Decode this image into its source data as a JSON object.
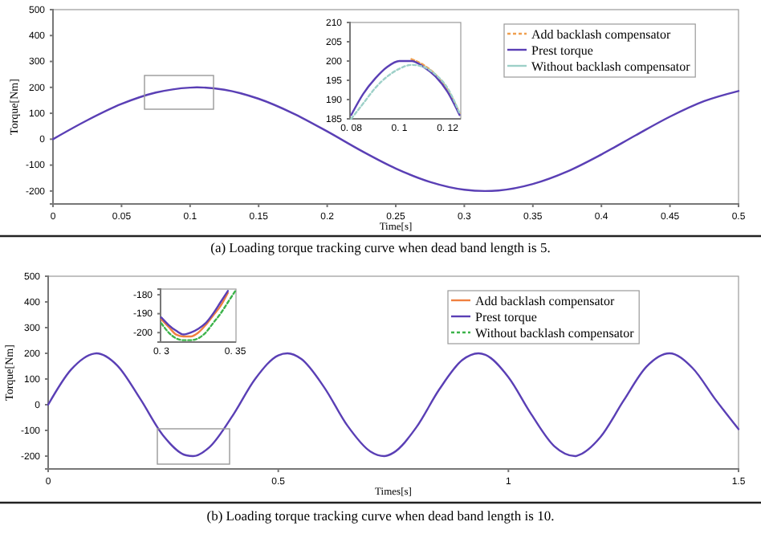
{
  "chart_data": [
    {
      "type": "line",
      "xlabel": "Time[s]",
      "ylabel": "Torque[Nm]",
      "annotations": [
        "(a) Loading torque tracking curve when dead band length is 5."
      ],
      "legend": "top right",
      "x": [
        0,
        0.025,
        0.05,
        0.075,
        0.1,
        0.105,
        0.125,
        0.15,
        0.175,
        0.2,
        0.225,
        0.25,
        0.275,
        0.3,
        0.315,
        0.325,
        0.35,
        0.375,
        0.4,
        0.425,
        0.45,
        0.475,
        0.5
      ],
      "xlim": [
        0,
        0.5
      ],
      "xticks": [
        0,
        0.05,
        0.1,
        0.15,
        0.2,
        0.25,
        0.3,
        0.35,
        0.4,
        0.45,
        0.5
      ],
      "ylim": [
        -250,
        500
      ],
      "yticks": [
        -200,
        -100,
        0,
        100,
        200,
        300,
        400,
        500
      ],
      "series": [
        {
          "name": "Add backlash compensator",
          "color": "#f0a050",
          "line_style": "dashed",
          "values": [
            null,
            null,
            null,
            null,
            null,
            null,
            null,
            null,
            null,
            null,
            null,
            null,
            null,
            null,
            null,
            null,
            null,
            null,
            null,
            null,
            null,
            null,
            null
          ]
        },
        {
          "name": "Prest torque",
          "color": "#5a3fb5",
          "line_style": "solid",
          "values": [
            0,
            73,
            136,
            180,
            199,
            200,
            191,
            156,
            100,
            30,
            -45,
            -113,
            -165,
            -195,
            -200,
            -198,
            -173,
            -125,
            -59,
            15,
            87,
            147,
            186
          ]
        },
        {
          "name": "Without backlash compensator",
          "color": "#9dd0c8",
          "line_style": "solid",
          "values": [
            null,
            null,
            null,
            null,
            null,
            null,
            null,
            null,
            null,
            null,
            null,
            null,
            null,
            null,
            null,
            null,
            null,
            null,
            null,
            null,
            null,
            null,
            null
          ]
        }
      ]
    },
    {
      "type": "line",
      "categories": [
        "0. 08",
        null,
        null,
        null,
        "0. 1",
        null,
        null,
        null,
        "0. 12",
        null
      ],
      "ylim": [
        185,
        210
      ],
      "yticks": [
        185,
        190,
        195,
        200,
        205,
        210
      ],
      "series": [
        {
          "color": "#f0a050",
          "line_style": "dashed",
          "values": [
            null,
            null,
            null,
            null,
            null,
            200.5,
            199,
            196.5,
            192.5,
            186.5
          ]
        },
        {
          "color": "#5a3fb5",
          "line_style": "solid",
          "values": [
            186,
            191.5,
            195.5,
            198.5,
            200,
            200,
            198.5,
            196,
            192,
            186
          ]
        },
        {
          "color": "#9dd0c8",
          "line_style": "dashed",
          "values": [
            185,
            189,
            193,
            196,
            198,
            199,
            198.5,
            196.5,
            193,
            186.5
          ]
        }
      ]
    },
    {
      "type": "line",
      "xlabel": "Times[s]",
      "ylabel": "Torque[Nm]",
      "annotations": [
        "(b) Loading torque tracking curve when dead band length is 10."
      ],
      "legend": "top right",
      "x": [
        0,
        0.05,
        0.1,
        0.105,
        0.15,
        0.2,
        0.25,
        0.3,
        0.315,
        0.35,
        0.4,
        0.45,
        0.5,
        0.52,
        0.55,
        0.6,
        0.65,
        0.7,
        0.73,
        0.75,
        0.8,
        0.85,
        0.9,
        0.935,
        0.95,
        1.0,
        1.05,
        1.1,
        1.145,
        1.15,
        1.2,
        1.25,
        1.3,
        1.35,
        1.4,
        1.45,
        1.5
      ],
      "xlim": [
        0,
        1.5
      ],
      "xticks": [
        0,
        0.5,
        1,
        1.5
      ],
      "ylim": [
        -250,
        500
      ],
      "yticks": [
        -200,
        -100,
        0,
        100,
        200,
        300,
        400,
        500
      ],
      "series": [
        {
          "name": "Add backlash compensator",
          "color": "#f08040",
          "line_style": "solid",
          "values": [
            null,
            null,
            null,
            null,
            null,
            null,
            null,
            null,
            null,
            null,
            null,
            null,
            null,
            null,
            null,
            null,
            null,
            null,
            null,
            null,
            null,
            null,
            null,
            null,
            null,
            null,
            null,
            null,
            null,
            null,
            null,
            null,
            null,
            null,
            null,
            null,
            null
          ]
        },
        {
          "name": "Prest torque",
          "color": "#5a3fb5",
          "line_style": "solid",
          "values": [
            0,
            137,
            199,
            200,
            153,
            23,
            -120,
            -197,
            -200,
            -166,
            -45,
            101,
            192,
            200,
            178,
            67,
            -81,
            -182,
            -200,
            -187,
            -88,
            60,
            174,
            200,
            194,
            107,
            -38,
            -162,
            -200,
            -198,
            -126,
            15,
            148,
            200,
            143,
            20,
            -95
          ]
        },
        {
          "name": "Without backlash compensator",
          "color": "#3cb34a",
          "line_style": "dashed",
          "values": [
            null,
            null,
            null,
            null,
            null,
            null,
            null,
            null,
            null,
            null,
            null,
            null,
            null,
            null,
            null,
            null,
            null,
            null,
            null,
            null,
            null,
            null,
            null,
            null,
            null,
            null,
            null,
            null,
            null,
            null,
            null,
            null,
            null,
            null,
            null,
            null,
            null
          ]
        }
      ]
    },
    {
      "type": "line",
      "categories": [
        "0. 3",
        null,
        null,
        null,
        null,
        null,
        null,
        null,
        null,
        null,
        "0. 35"
      ],
      "ylim": [
        -205,
        -177
      ],
      "yticks": [
        -200,
        -190,
        -180
      ],
      "series": [
        {
          "color": "#f08040",
          "line_style": "solid",
          "values": [
            -193,
            -197,
            -201,
            -202,
            -202,
            -200,
            -196,
            -191,
            -186,
            -179,
            null
          ]
        },
        {
          "color": "#5a3fb5",
          "line_style": "solid",
          "values": [
            -192,
            -196,
            -199,
            -201,
            -200,
            -198,
            -195,
            -190,
            -184,
            -178,
            null
          ]
        },
        {
          "color": "#3cb34a",
          "line_style": "dashed",
          "values": [
            -195,
            -200,
            -203,
            -204,
            -204,
            -203,
            -200,
            -195,
            -190,
            -184,
            -178
          ]
        }
      ]
    }
  ]
}
